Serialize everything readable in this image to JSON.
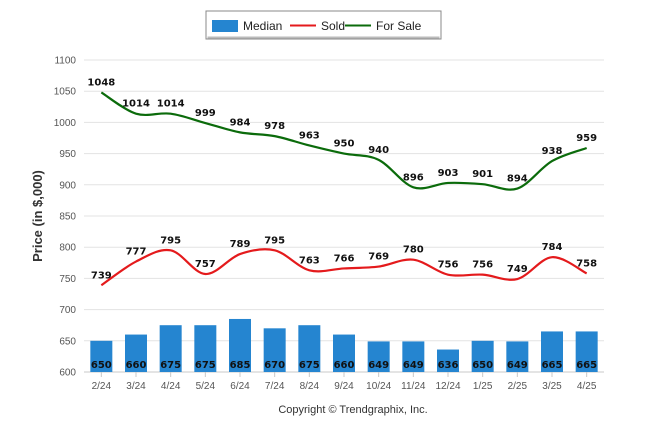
{
  "chart_data": {
    "type": "bar",
    "ylabel": "Price (in $,000)",
    "ylim": [
      600,
      1100
    ],
    "yticks": [
      600,
      650,
      700,
      750,
      800,
      850,
      900,
      950,
      1000,
      1050,
      1100
    ],
    "categories": [
      "2/24",
      "3/24",
      "4/24",
      "5/24",
      "6/24",
      "7/24",
      "8/24",
      "9/24",
      "10/24",
      "11/24",
      "12/24",
      "1/25",
      "2/25",
      "3/25",
      "4/25"
    ],
    "legend_position": "top-center",
    "grid": true,
    "series": [
      {
        "name": "Median",
        "kind": "bar",
        "color": "#2585d0",
        "values": [
          650,
          660,
          675,
          675,
          685,
          670,
          675,
          660,
          649,
          649,
          636,
          650,
          649,
          665,
          665
        ]
      },
      {
        "name": "Sold",
        "kind": "line",
        "color": "#e41a1c",
        "values": [
          739,
          777,
          795,
          757,
          789,
          795,
          763,
          766,
          769,
          780,
          756,
          756,
          749,
          784,
          758
        ]
      },
      {
        "name": "For Sale",
        "kind": "line",
        "color": "#0b6b0b",
        "values": [
          1048,
          1014,
          1014,
          999,
          984,
          978,
          963,
          950,
          940,
          896,
          903,
          901,
          894,
          938,
          959
        ]
      }
    ]
  },
  "footer": {
    "copyright": "Copyright © Trendgraphix, Inc."
  }
}
